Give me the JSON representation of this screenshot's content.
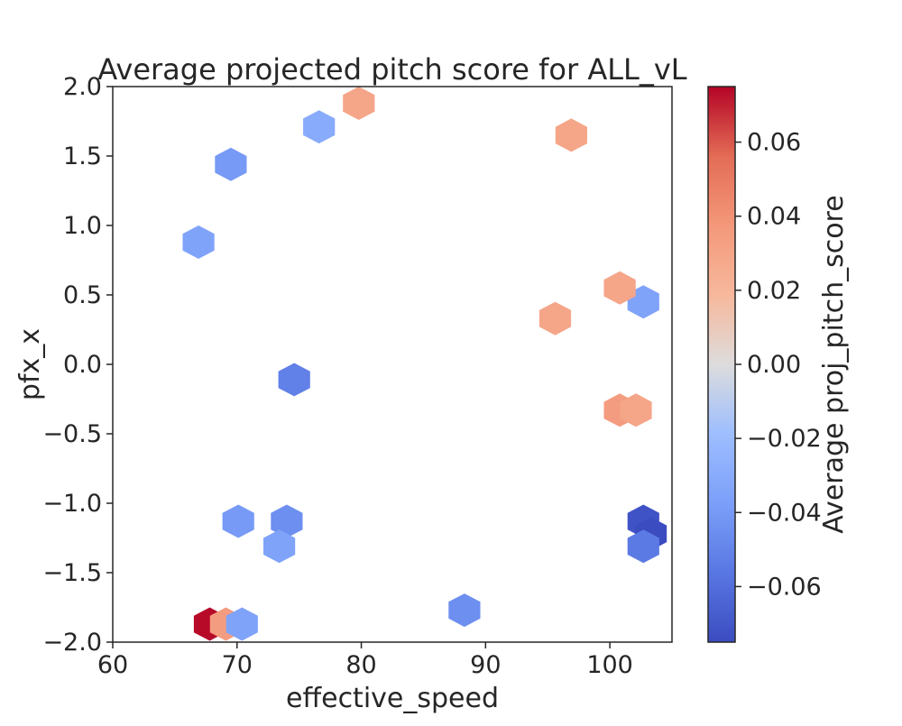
{
  "chart_data": {
    "type": "heatmap",
    "subtype": "hexbin",
    "title": "Average projected pitch score for ALL_vL",
    "xlabel": "effective_speed",
    "ylabel": "pfx_x",
    "xlim": [
      60,
      105
    ],
    "ylim": [
      -2.0,
      2.0
    ],
    "x_ticks": [
      "60",
      "70",
      "80",
      "90",
      "100"
    ],
    "y_ticks": [
      "2.0",
      "1.5",
      "1.0",
      "0.5",
      "0.0",
      "−0.5",
      "−1.0",
      "−1.5",
      "−2.0"
    ],
    "grid": false,
    "colormap": "coolwarm",
    "colorbar": {
      "label": "Average proj_pitch_score",
      "range": [
        -0.075,
        0.075
      ],
      "ticks": [
        "0.06",
        "0.04",
        "0.02",
        "0.00",
        "−0.02",
        "−0.04",
        "−0.06"
      ],
      "tick_values": [
        0.06,
        0.04,
        0.02,
        0.0,
        -0.02,
        -0.04,
        -0.06
      ],
      "low_color": "#3b4cc0",
      "mid_color": "#dddddd",
      "high_color": "#b40426"
    },
    "points": [
      {
        "x": 67.8,
        "y": -1.87,
        "value": 0.074
      },
      {
        "x": 69.1,
        "y": -1.87,
        "value": 0.035
      },
      {
        "x": 70.4,
        "y": -1.87,
        "value": -0.035
      },
      {
        "x": 102.7,
        "y": -1.13,
        "value": -0.072
      },
      {
        "x": 103.3,
        "y": -1.22,
        "value": -0.075
      },
      {
        "x": 102.7,
        "y": -1.31,
        "value": -0.055
      },
      {
        "x": 74.6,
        "y": -0.11,
        "value": -0.052
      },
      {
        "x": 70.1,
        "y": -1.13,
        "value": -0.04
      },
      {
        "x": 74.0,
        "y": -1.13,
        "value": -0.045
      },
      {
        "x": 73.4,
        "y": -1.31,
        "value": -0.035
      },
      {
        "x": 69.5,
        "y": 1.44,
        "value": -0.04
      },
      {
        "x": 66.9,
        "y": 0.88,
        "value": -0.035
      },
      {
        "x": 76.6,
        "y": 1.71,
        "value": -0.03
      },
      {
        "x": 102.7,
        "y": 0.45,
        "value": -0.035
      },
      {
        "x": 100.8,
        "y": -0.33,
        "value": 0.035
      },
      {
        "x": 102.1,
        "y": -0.33,
        "value": 0.03
      },
      {
        "x": 100.8,
        "y": 0.55,
        "value": 0.03
      },
      {
        "x": 96.9,
        "y": 1.65,
        "value": 0.03
      },
      {
        "x": 95.6,
        "y": 0.33,
        "value": 0.03
      },
      {
        "x": 79.8,
        "y": 1.88,
        "value": 0.03
      },
      {
        "x": 88.3,
        "y": -1.77,
        "value": -0.045
      }
    ]
  }
}
